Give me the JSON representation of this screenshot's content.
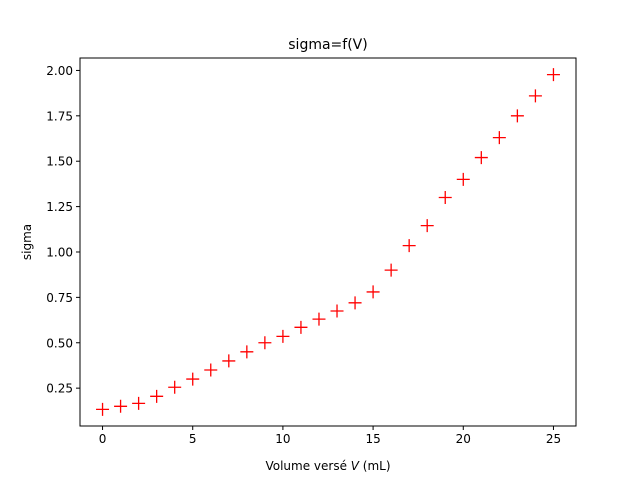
{
  "chart_data": {
    "type": "scatter",
    "title": "sigma=f(V)",
    "xlabel_prefix": "Volume versé ",
    "xlabel_var": "V",
    "xlabel_suffix": " (mL)",
    "ylabel": "sigma",
    "xlim": [
      -1.25,
      26.25
    ],
    "ylim": [
      0.0415,
      2.0685
    ],
    "xticks": [
      0,
      5,
      10,
      15,
      20,
      25
    ],
    "yticks": [
      0.25,
      0.5,
      0.75,
      1.0,
      1.25,
      1.5,
      1.75,
      2.0
    ],
    "ytick_labels": [
      "0.25",
      "0.50",
      "0.75",
      "1.00",
      "1.25",
      "1.50",
      "1.75",
      "2.00"
    ],
    "grid": false,
    "marker": "+",
    "color": "#ff0000",
    "x": [
      0,
      1,
      2,
      3,
      4,
      5,
      6,
      7,
      8,
      9,
      10,
      11,
      12,
      13,
      14,
      15,
      16,
      17,
      18,
      19,
      20,
      21,
      22,
      23,
      24,
      25
    ],
    "y": [
      0.133,
      0.15,
      0.166,
      0.205,
      0.255,
      0.3,
      0.35,
      0.4,
      0.45,
      0.5,
      0.535,
      0.585,
      0.63,
      0.675,
      0.72,
      0.78,
      0.9,
      1.035,
      1.145,
      1.3,
      1.4,
      1.52,
      1.63,
      1.75,
      1.86,
      1.977
    ]
  }
}
